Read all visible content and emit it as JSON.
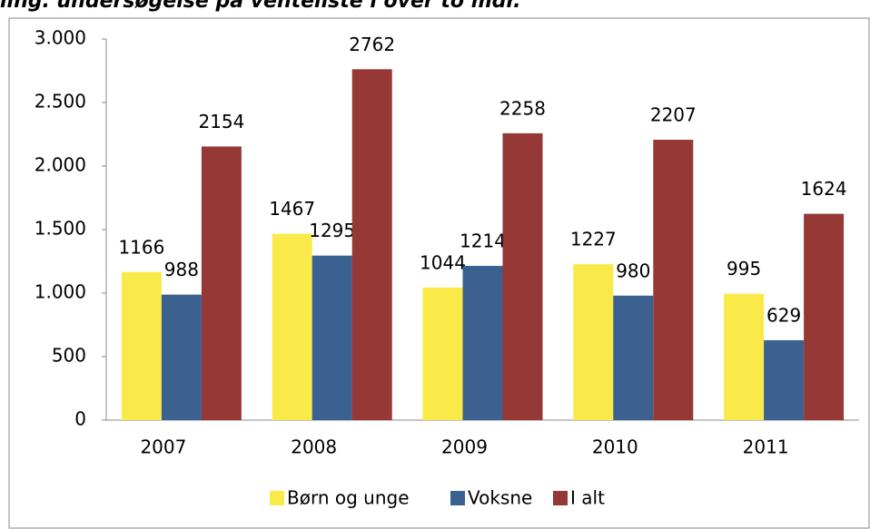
{
  "chart_data": {
    "type": "bar",
    "title": "ling. undersøgelse på venteliste i over to mdr.",
    "categories": [
      "2007",
      "2008",
      "2009",
      "2010",
      "2011"
    ],
    "series": [
      {
        "name": "Børn og unge",
        "color": "#f9ea4a",
        "values": [
          1166,
          1467,
          1044,
          1227,
          995
        ]
      },
      {
        "name": "Voksne",
        "color": "#3b6191",
        "values": [
          988,
          1295,
          1214,
          980,
          629
        ]
      },
      {
        "name": "I alt",
        "color": "#953836",
        "values": [
          2154,
          2762,
          2258,
          2207,
          1624
        ]
      }
    ],
    "ylim": [
      0,
      3000
    ],
    "yticks": [
      0,
      500,
      {
        "value": 1000,
        "label": "1.000"
      },
      {
        "value": 1500,
        "label": "1.500"
      },
      {
        "value": 2000,
        "label": "2.000"
      },
      {
        "value": 2500,
        "label": "2.500"
      },
      {
        "value": 3000,
        "label": "3.000"
      }
    ],
    "grid": false,
    "legend": "bottom"
  }
}
